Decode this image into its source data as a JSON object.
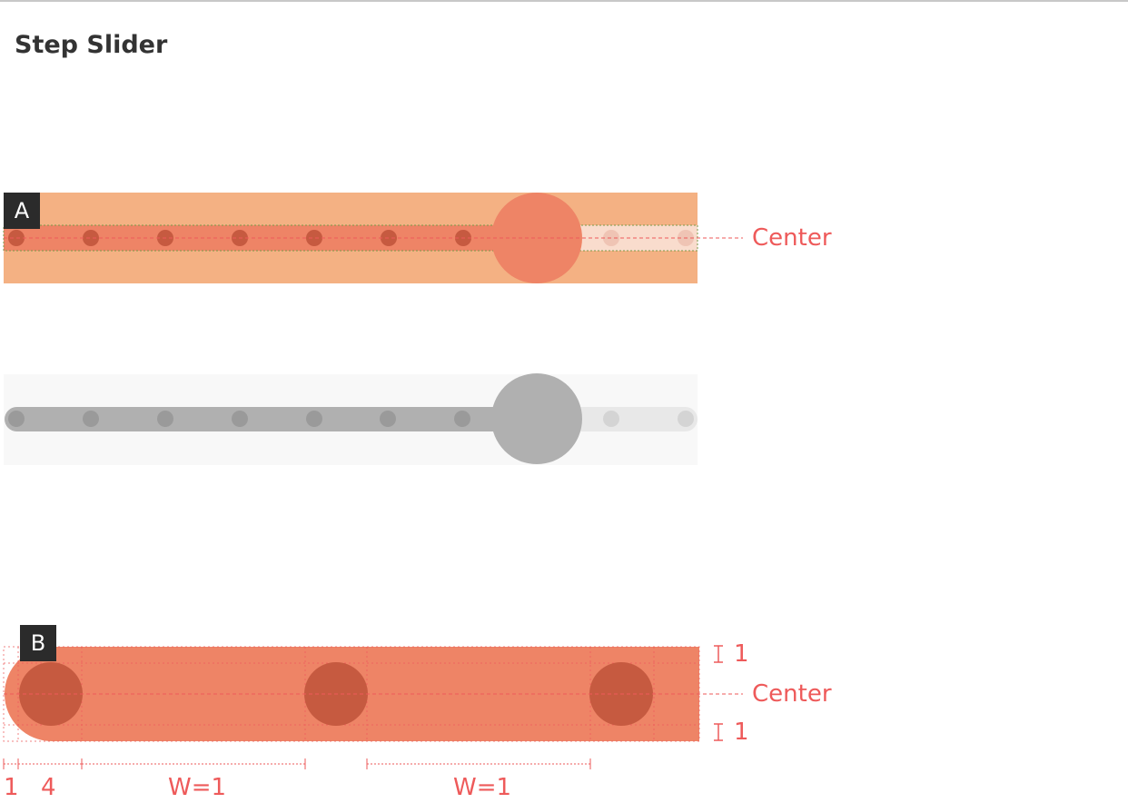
{
  "page": {
    "title": "Step Slider"
  },
  "colors": {
    "spec_background": "#f4b183",
    "active_track": "#ee8466",
    "inactive_track": "#f9dccd",
    "active_dot": "#c65a40",
    "inactive_dot": "#efc4b4",
    "thumb": "#ee8466",
    "annotation": "#ee5a5a",
    "preview_background": "#f8f8f8",
    "preview_active": "#b0b0b0",
    "preview_inactive": "#e8e8e8",
    "preview_active_dot": "#9a9a9a",
    "preview_inactive_dot": "#d4d4d4",
    "badge": "#2b2b2b"
  },
  "slider": {
    "steps": 10,
    "selected_step": 8
  },
  "section_a": {
    "badge": "A",
    "center_label": "Center"
  },
  "section_b": {
    "badge": "B",
    "center_label": "Center",
    "top_margin_label": "1",
    "bottom_margin_label": "1",
    "edge_label": "1",
    "dot_label": "4",
    "gap1_label": "W=1",
    "gap2_label": "W=1"
  }
}
